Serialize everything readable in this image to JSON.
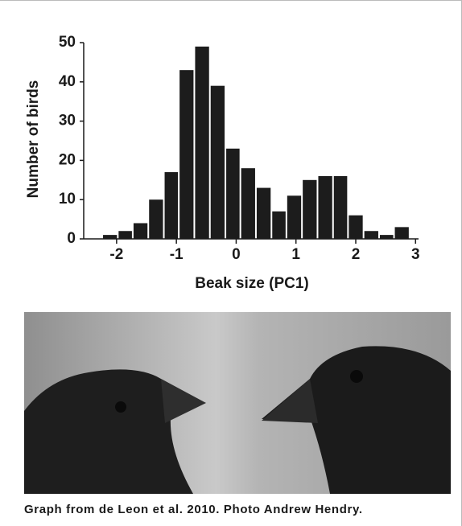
{
  "chart_data": {
    "type": "histogram",
    "x_label": "Beak size (PC1)",
    "y_label": "Number of birds",
    "bins": [
      -2.24,
      -1.98,
      -1.73,
      -1.47,
      -1.21,
      -0.96,
      -0.7,
      -0.44,
      -0.18,
      0.07,
      0.33,
      0.59,
      0.84,
      1.1,
      1.36,
      1.62,
      1.87,
      2.13,
      2.39,
      2.64,
      2.9
    ],
    "counts": [
      1,
      2,
      4,
      10,
      17,
      43,
      49,
      39,
      23,
      18,
      13,
      7,
      11,
      15,
      16,
      16,
      6,
      2,
      1,
      3
    ],
    "color": "#1c1c1c",
    "xlim": [
      -2.55,
      3.05
    ],
    "ylim": [
      0,
      50
    ],
    "xticks": [
      -2,
      -1,
      0,
      1,
      2,
      3
    ],
    "yticks": [
      0,
      10,
      20,
      30,
      40,
      50
    ]
  },
  "caption": "Graph from  de Leon et al. 2010. Photo Andrew Hendry."
}
